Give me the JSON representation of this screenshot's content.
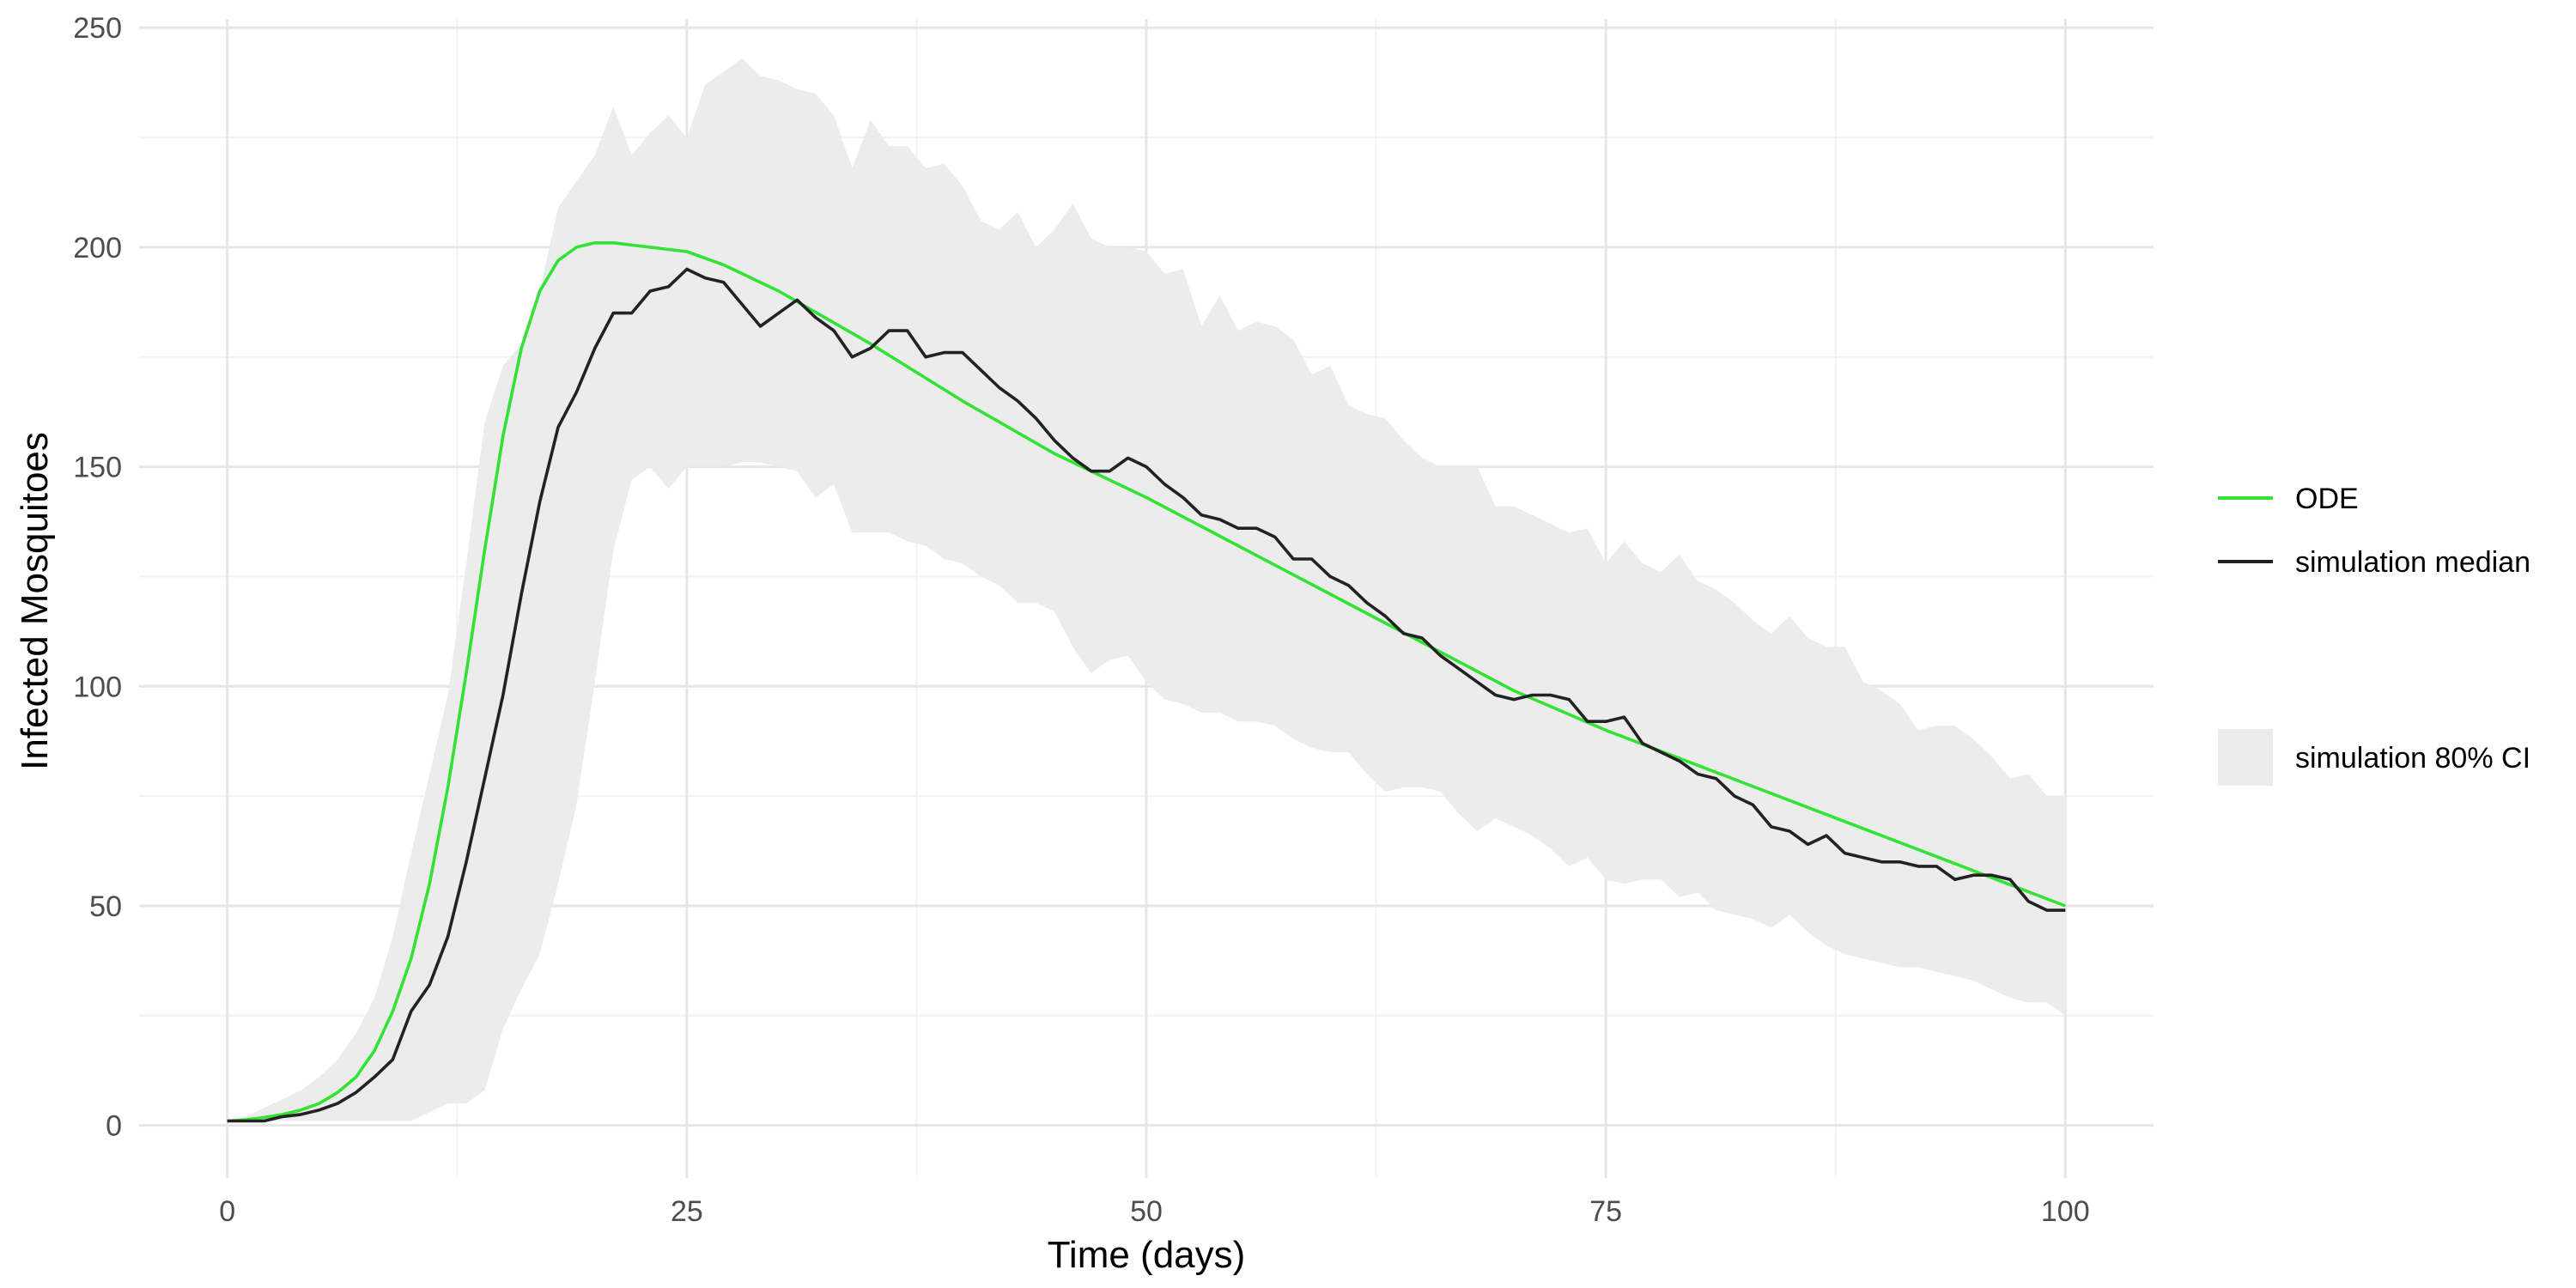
{
  "chart_data": {
    "type": "line",
    "title": "",
    "xlabel": "Time (days)",
    "ylabel": "Infected Mosquitoes",
    "xlim": [
      -4.8,
      104.8
    ],
    "ylim": [
      -12,
      252
    ],
    "x_ticks": [
      0,
      25,
      50,
      75,
      100
    ],
    "y_ticks": [
      0,
      50,
      100,
      150,
      200,
      250
    ],
    "grid": true,
    "legend_position": "right",
    "series": [
      {
        "name": "ODE",
        "kind": "line",
        "color": "#33e333",
        "x": [
          0,
          1,
          2,
          3,
          4,
          5,
          6,
          7,
          8,
          9,
          10,
          11,
          12,
          13,
          14,
          15,
          16,
          17,
          18,
          19,
          20,
          21,
          22,
          23,
          24,
          25,
          27,
          30,
          35,
          40,
          45,
          50,
          55,
          60,
          65,
          70,
          75,
          80,
          85,
          90,
          95,
          100
        ],
        "y": [
          1,
          1.3,
          1.8,
          2.5,
          3.5,
          5,
          7.5,
          11,
          17,
          26,
          38,
          55,
          77,
          103,
          131,
          157,
          177,
          190,
          197,
          200,
          201,
          201,
          200.5,
          200,
          199.5,
          199,
          196,
          190,
          178,
          165,
          153,
          143,
          132,
          121,
          110,
          99,
          90,
          82,
          74,
          66,
          58,
          50
        ]
      },
      {
        "name": "simulation median",
        "kind": "line",
        "color": "#222222",
        "x": [
          0,
          1,
          2,
          3,
          4,
          5,
          6,
          7,
          8,
          9,
          10,
          11,
          12,
          13,
          14,
          15,
          16,
          17,
          18,
          19,
          20,
          21,
          22,
          23,
          24,
          25,
          26,
          27,
          28,
          29,
          30,
          31,
          32,
          33,
          34,
          35,
          36,
          37,
          38,
          39,
          40,
          41,
          42,
          43,
          44,
          45,
          46,
          47,
          48,
          49,
          50,
          51,
          52,
          53,
          54,
          55,
          56,
          57,
          58,
          59,
          60,
          61,
          62,
          63,
          64,
          65,
          66,
          67,
          68,
          69,
          70,
          71,
          72,
          73,
          74,
          75,
          76,
          77,
          78,
          79,
          80,
          81,
          82,
          83,
          84,
          85,
          86,
          87,
          88,
          89,
          90,
          91,
          92,
          93,
          94,
          95,
          96,
          97,
          98,
          99,
          100
        ],
        "y": [
          1,
          1,
          1,
          2,
          2.5,
          3.5,
          5,
          7.5,
          11,
          15,
          26,
          32,
          43,
          60,
          79,
          98,
          121,
          142,
          159,
          167,
          177,
          185,
          185,
          190,
          191,
          195,
          193,
          192,
          187,
          182,
          185,
          188,
          184,
          181,
          175,
          177,
          181,
          181,
          175,
          176,
          176,
          172,
          168,
          165,
          161,
          156,
          152,
          149,
          149,
          152,
          150,
          146,
          143,
          139,
          138,
          136,
          136,
          134,
          129,
          129,
          125,
          123,
          119,
          116,
          112,
          111,
          107,
          104,
          101,
          98,
          97,
          98,
          98,
          97,
          92,
          92,
          93,
          87,
          85,
          83,
          80,
          79,
          75,
          73,
          68,
          67,
          64,
          66,
          62,
          61,
          60,
          60,
          59,
          59,
          56,
          57,
          57,
          56,
          51,
          49,
          49
        ]
      }
    ],
    "ribbon": {
      "name": "simulation 80% CI",
      "color": "#ebebeb",
      "x": [
        0,
        1,
        2,
        3,
        4,
        5,
        6,
        7,
        8,
        9,
        10,
        11,
        12,
        13,
        14,
        15,
        16,
        17,
        18,
        19,
        20,
        21,
        22,
        23,
        24,
        25,
        26,
        27,
        28,
        29,
        30,
        31,
        32,
        33,
        34,
        35,
        36,
        37,
        38,
        39,
        40,
        41,
        42,
        43,
        44,
        45,
        46,
        47,
        48,
        49,
        50,
        51,
        52,
        53,
        54,
        55,
        56,
        57,
        58,
        59,
        60,
        61,
        62,
        63,
        64,
        65,
        66,
        67,
        68,
        69,
        70,
        71,
        72,
        73,
        74,
        75,
        76,
        77,
        78,
        79,
        80,
        81,
        82,
        83,
        84,
        85,
        86,
        87,
        88,
        89,
        90,
        91,
        92,
        93,
        94,
        95,
        96,
        97,
        98,
        99,
        100
      ],
      "upper": [
        1,
        2,
        4,
        6,
        8,
        11,
        15,
        21,
        29,
        43,
        62,
        80,
        98,
        128,
        160,
        173,
        178,
        190,
        209,
        215,
        221,
        232,
        221,
        226,
        230,
        225,
        237,
        240,
        243,
        239,
        238,
        236,
        235,
        230,
        218,
        229,
        223,
        223,
        218,
        219,
        214,
        206,
        204,
        208,
        200,
        204,
        210,
        202,
        200,
        200,
        199,
        194,
        195,
        182,
        189,
        181,
        183,
        182,
        179,
        171,
        173,
        164,
        162,
        161,
        156,
        152,
        150,
        150,
        150,
        141,
        141,
        139,
        137,
        135,
        136,
        128,
        133,
        128,
        126,
        130,
        124,
        122,
        119,
        115,
        112,
        116,
        111,
        109,
        109,
        101,
        99,
        96,
        90,
        91,
        91,
        88,
        84,
        79,
        80,
        75,
        75
      ],
      "lower": [
        1,
        1,
        1,
        1,
        1,
        1,
        1,
        1,
        1,
        1,
        1,
        3,
        5,
        5,
        8,
        22,
        31,
        39,
        55,
        73,
        101,
        131,
        147,
        150,
        145,
        150,
        150,
        150,
        151,
        151,
        150,
        149,
        143,
        146,
        135,
        135,
        135,
        133,
        132,
        129,
        128,
        125,
        123,
        119,
        119,
        117,
        109,
        103,
        106,
        107,
        101,
        97,
        96,
        94,
        94,
        92,
        92,
        91,
        88,
        86,
        85,
        85,
        80,
        76,
        77,
        77,
        76,
        71,
        67,
        70,
        68,
        66,
        63,
        59,
        61,
        56,
        55,
        56,
        56,
        52,
        53,
        49,
        48,
        47,
        45,
        48,
        44,
        41,
        39,
        38,
        37,
        36,
        36,
        35,
        34,
        33,
        31,
        29,
        28,
        28,
        25
      ]
    }
  },
  "legend": {
    "items": [
      {
        "label": "ODE",
        "kind": "line",
        "color": "#33e333"
      },
      {
        "label": "simulation median",
        "kind": "line",
        "color": "#222222"
      },
      {
        "label": "simulation 80% CI",
        "kind": "fill",
        "color": "#ebebeb"
      }
    ]
  }
}
